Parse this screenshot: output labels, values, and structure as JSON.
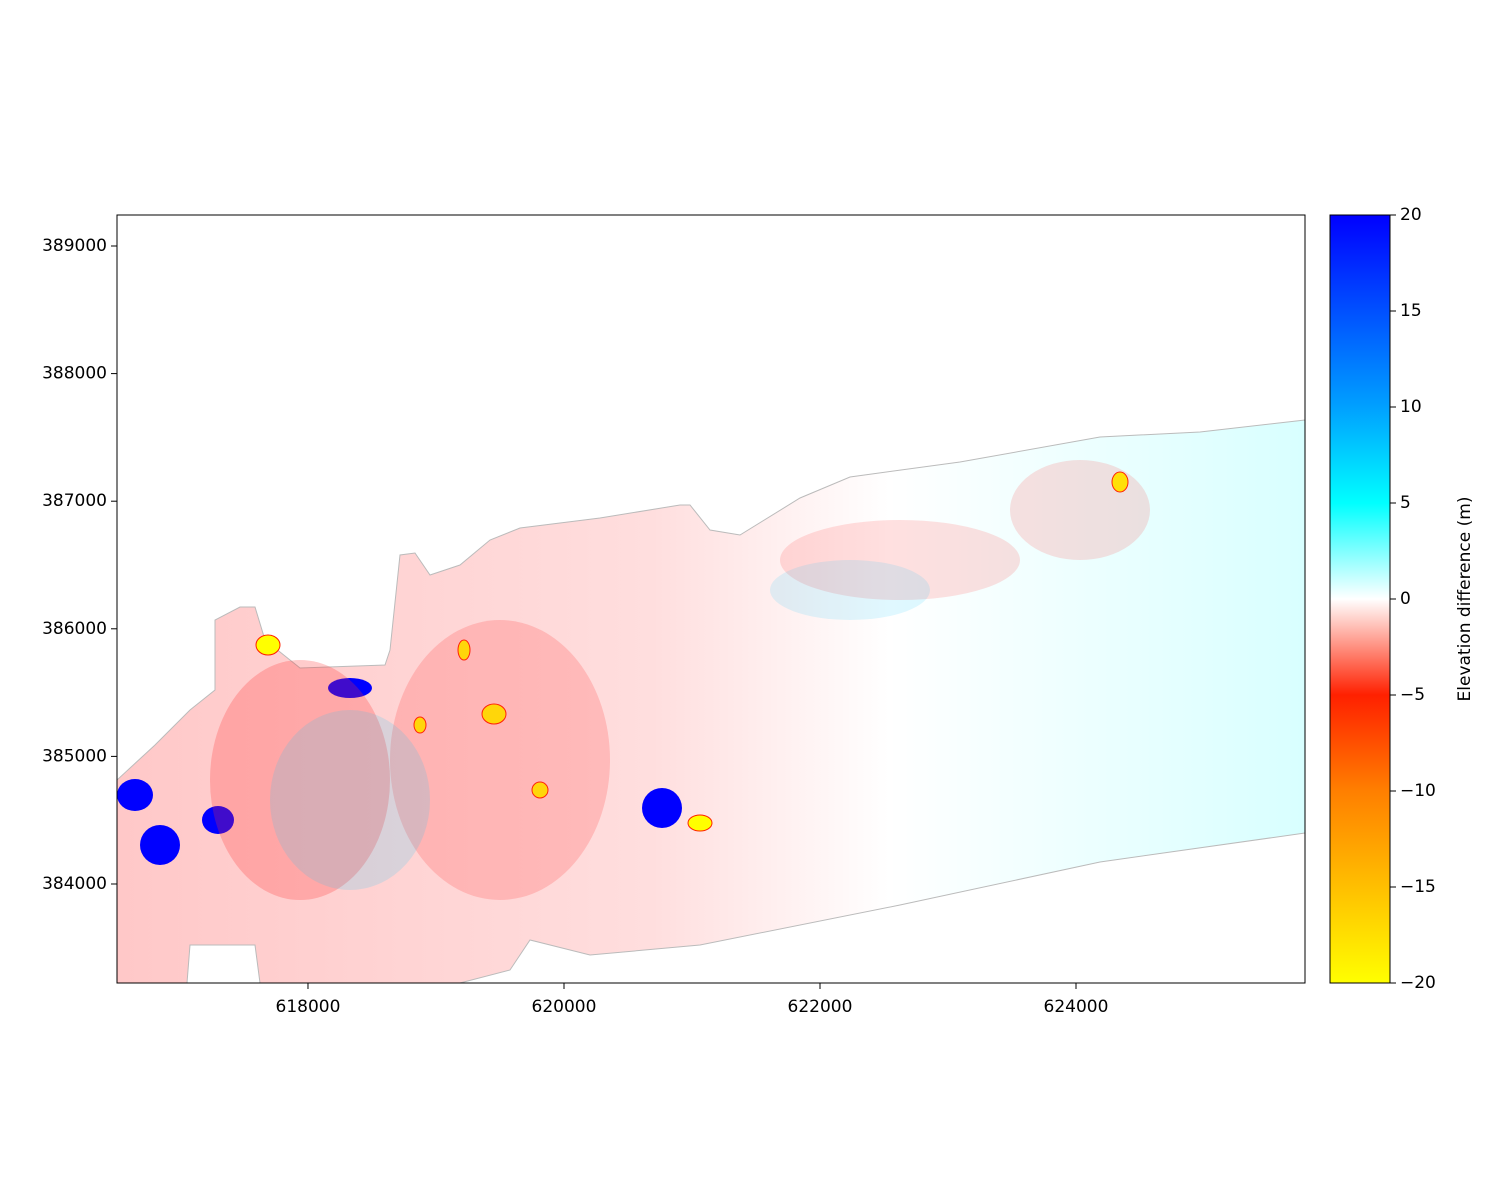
{
  "chart_data": {
    "type": "raster",
    "xlim": [
      616508,
      625789
    ],
    "xticks": [
      618000,
      620000,
      622000,
      624000
    ],
    "ylim": [
      383224,
      389243
    ],
    "yticks": [
      384000,
      385000,
      386000,
      387000,
      388000,
      389000
    ],
    "colorbar_label": "Elevation difference (m)",
    "clim": [
      -20,
      20
    ],
    "cticks": [
      -20,
      -15,
      -10,
      -5,
      0,
      5,
      10,
      15,
      20
    ],
    "colors": [
      "#ffff00",
      "#ffbf00",
      "#ff7f00",
      "#ff2000",
      "#ffffff",
      "#00ffff",
      "#00a0ff",
      "#0050ff",
      "#0000ff"
    ]
  }
}
